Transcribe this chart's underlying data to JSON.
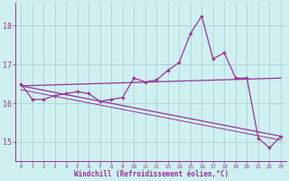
{
  "xlabel": "Windchill (Refroidissement éolien,°C)",
  "bg_color": "#cef0f0",
  "line_color": "#993399",
  "grid_color": "#aacccc",
  "x_values": [
    0,
    1,
    2,
    3,
    4,
    5,
    6,
    7,
    8,
    9,
    10,
    11,
    12,
    13,
    14,
    15,
    16,
    17,
    18,
    19,
    20,
    21,
    22,
    23
  ],
  "series1": [
    16.5,
    16.1,
    16.1,
    16.2,
    16.25,
    16.3,
    16.25,
    16.05,
    16.1,
    16.15,
    16.65,
    16.55,
    16.6,
    16.85,
    17.05,
    17.8,
    18.25,
    17.15,
    17.3,
    16.65,
    16.65,
    15.1,
    14.85,
    15.15
  ],
  "series2_start": 16.45,
  "series2_end": 16.65,
  "series3_start": 16.45,
  "series3_end": 15.15,
  "series4_start": 16.35,
  "series4_end": 15.05,
  "ylim": [
    14.5,
    18.6
  ],
  "xlim": [
    -0.5,
    23.5
  ],
  "yticks": [
    15,
    16,
    17,
    18
  ],
  "xticks": [
    0,
    1,
    2,
    3,
    4,
    5,
    6,
    7,
    8,
    9,
    10,
    11,
    12,
    13,
    14,
    15,
    16,
    17,
    18,
    19,
    20,
    21,
    22,
    23
  ]
}
